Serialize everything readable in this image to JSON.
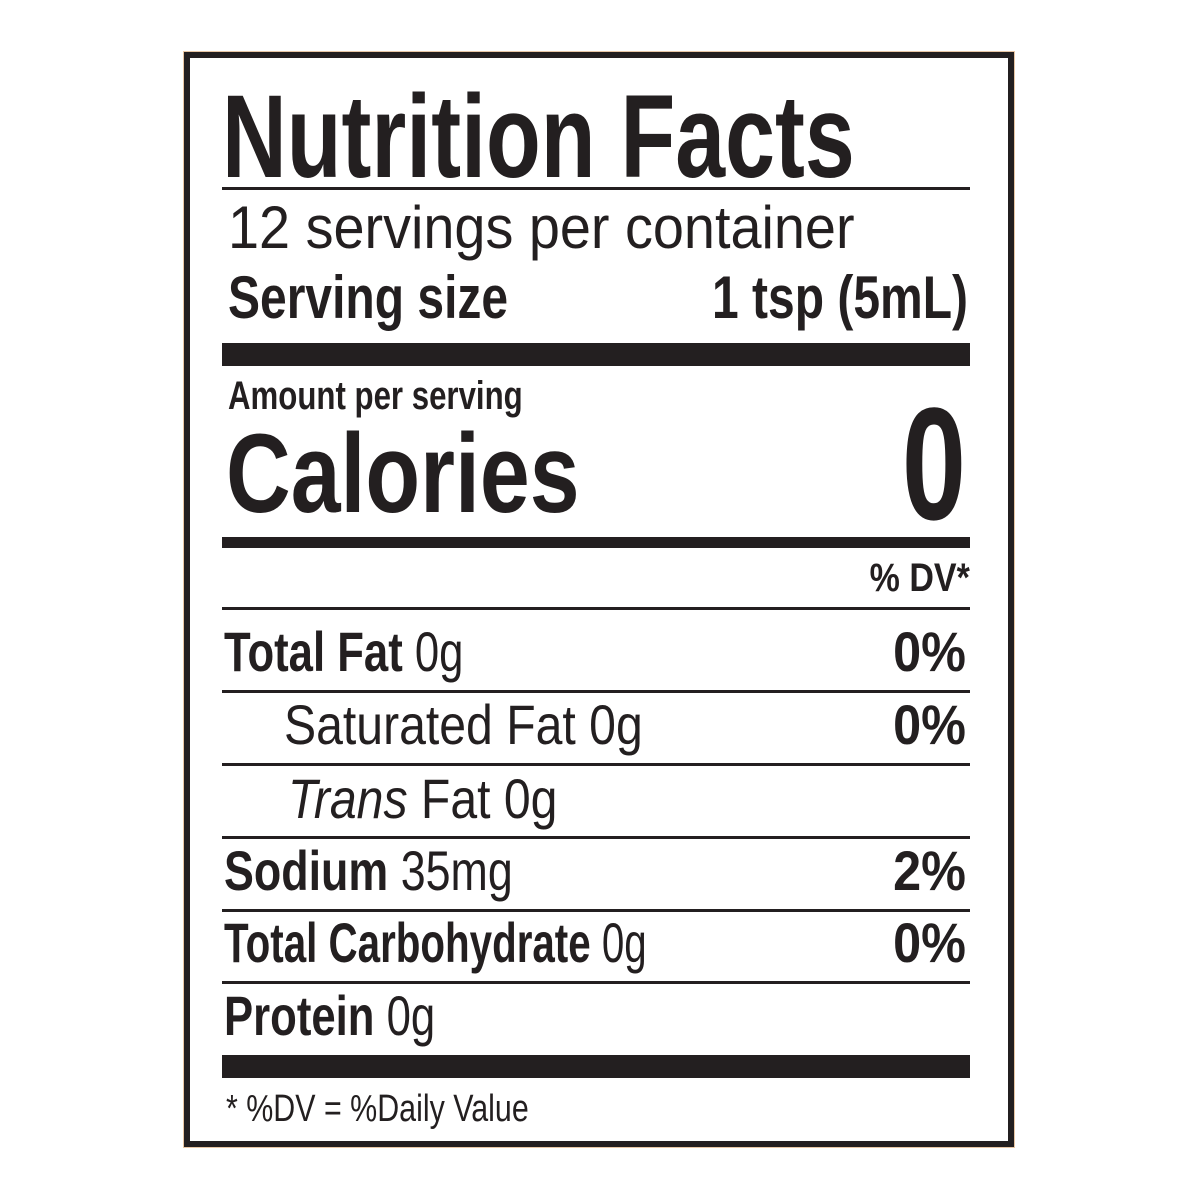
{
  "label": {
    "title": "Nutrition Facts",
    "servings_per_container": "12 servings per container",
    "serving_size_label": "Serving size",
    "serving_size_value": "1 tsp (5mL)",
    "amount_per_serving": "Amount per serving",
    "calories_label": "Calories",
    "calories_value": "0",
    "dv_header": "% DV*",
    "rows": [
      {
        "name": "Total Fat",
        "amount": "0g",
        "dv": "0%"
      },
      {
        "name": "Saturated Fat 0g",
        "amount": "",
        "dv": "0%"
      },
      {
        "name": "Trans",
        "amount": "Fat 0g",
        "dv": ""
      },
      {
        "name": "Sodium",
        "amount": "35mg",
        "dv": "2%"
      },
      {
        "name": "Total Carbohydrate",
        "amount": "0g",
        "dv": "0%"
      },
      {
        "name": "Protein",
        "amount": "0g",
        "dv": ""
      }
    ],
    "footnote": "* %DV = %Daily Value"
  },
  "colors": {
    "ink": "#231f20",
    "edge": "#e8c6a4"
  }
}
